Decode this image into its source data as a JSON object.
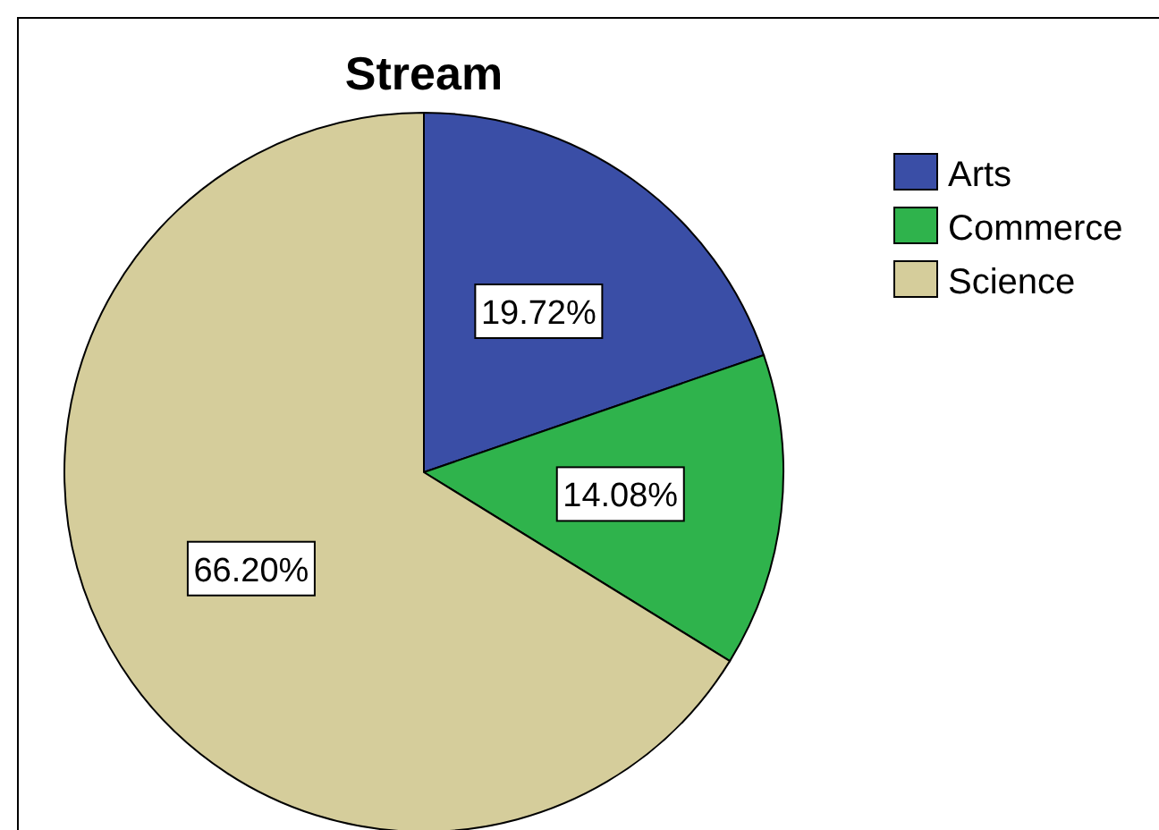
{
  "chart_data": {
    "type": "pie",
    "title": "Stream",
    "categories": [
      "Arts",
      "Commerce",
      "Science"
    ],
    "values": [
      19.72,
      14.08,
      66.2
    ],
    "value_labels": [
      "19.72%",
      "14.08%",
      "66.20%"
    ],
    "colors": [
      "#3a4ea6",
      "#2fb34c",
      "#d5cd9b"
    ],
    "legend": "top right"
  }
}
